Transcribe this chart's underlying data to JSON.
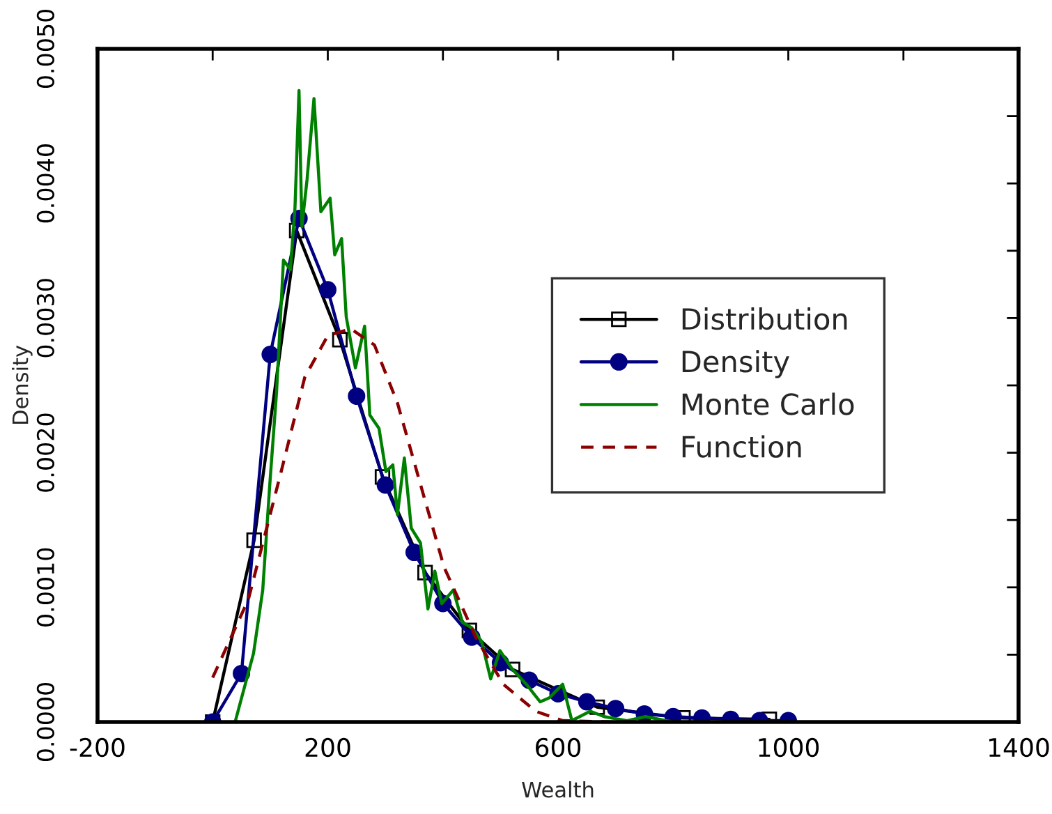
{
  "chart_data": {
    "type": "line",
    "xlabel": "Wealth",
    "ylabel": "Density",
    "xlim": [
      -200,
      1400
    ],
    "ylim": [
      0,
      0.005
    ],
    "xticks": [
      -200,
      {
        "value": 0,
        "label": null
      },
      200,
      {
        "value": 400,
        "label": null
      },
      600,
      {
        "value": 800,
        "label": null
      },
      1000,
      {
        "value": 1200,
        "label": null
      },
      1400
    ],
    "yticks": [
      {
        "value": 0,
        "label": "0.0000"
      },
      {
        "value": 0.0005,
        "label": null
      },
      {
        "value": 0.001,
        "label": "0.0010"
      },
      {
        "value": 0.0015,
        "label": null
      },
      {
        "value": 0.002,
        "label": "0.0020"
      },
      {
        "value": 0.0025,
        "label": null
      },
      {
        "value": 0.003,
        "label": "0.0030"
      },
      {
        "value": 0.0035,
        "label": null
      },
      {
        "value": 0.004,
        "label": "0.0040"
      },
      {
        "value": 0.0045,
        "label": null
      },
      {
        "value": 0.005,
        "label": "0.0050"
      }
    ],
    "grid": false,
    "legend": "right",
    "series": [
      {
        "name": "Distribution",
        "color": "#000000",
        "marker": "square",
        "line_style": "solid",
        "x": [
          0,
          72,
          146,
          221,
          295,
          369,
          446,
          521,
          668,
          817,
          967
        ],
        "values": [
          0,
          0.00135,
          0.00365,
          0.00284,
          0.00182,
          0.00111,
          0.00068,
          0.00039,
          0.00011,
          3e-05,
          2e-05
        ]
      },
      {
        "name": "Density",
        "color": "#000080",
        "marker": "circle",
        "line_style": "solid",
        "x": [
          0,
          50,
          100,
          150,
          200,
          250,
          300,
          350,
          400,
          450,
          500,
          550,
          600,
          650,
          700,
          750,
          800,
          850,
          900,
          950,
          1000
        ],
        "values": [
          0,
          0.00036,
          0.00273,
          0.00374,
          0.00321,
          0.00242,
          0.00176,
          0.00126,
          0.00088,
          0.00063,
          0.00044,
          0.00031,
          0.00021,
          0.00015,
          0.0001,
          6e-05,
          4e-05,
          3e-05,
          2e-05,
          1e-05,
          1e-05
        ]
      },
      {
        "name": "Monte Carlo",
        "color": "#008000",
        "marker": "none",
        "line_style": "solid",
        "x": [
          39,
          71,
          87,
          99,
          111,
          123,
          135,
          143,
          150,
          155,
          164,
          176,
          188,
          204,
          212,
          224,
          232,
          248,
          264,
          273,
          289,
          301,
          313,
          321,
          333,
          345,
          361,
          374,
          386,
          398,
          418,
          434,
          450,
          467,
          483,
          499,
          521,
          545,
          569,
          585,
          608,
          624,
          656,
          680,
          720,
          752,
          800,
          900,
          1000
        ],
        "values": [
          0,
          0.00051,
          0.00098,
          0.00175,
          0.00245,
          0.00343,
          0.00336,
          0.00382,
          0.00469,
          0.00368,
          0.00403,
          0.00463,
          0.00379,
          0.00389,
          0.00347,
          0.00359,
          0.00301,
          0.00263,
          0.00294,
          0.00228,
          0.00218,
          0.00186,
          0.00191,
          0.00154,
          0.00196,
          0.00144,
          0.00133,
          0.00084,
          0.00112,
          0.00088,
          0.00098,
          0.00074,
          0.0007,
          0.0006,
          0.00032,
          0.00053,
          0.00039,
          0.00028,
          0.00015,
          0.00018,
          0.00028,
          1e-05,
          8e-05,
          4e-05,
          1e-05,
          4e-05,
          0,
          0,
          0
        ]
      },
      {
        "name": "Function",
        "color": "#8b0000",
        "marker": "none",
        "line_style": "dashed",
        "x": [
          0,
          62,
          119,
          160,
          200,
          240,
          281,
          321,
          362,
          402,
          457,
          505,
          561,
          608,
          700,
          800,
          1000
        ],
        "values": [
          0.00033,
          0.00091,
          0.00186,
          0.00256,
          0.00287,
          0.00292,
          0.0028,
          0.00237,
          0.00175,
          0.00115,
          0.00063,
          0.00028,
          8e-05,
          1e-05,
          0,
          0,
          0
        ]
      }
    ]
  }
}
